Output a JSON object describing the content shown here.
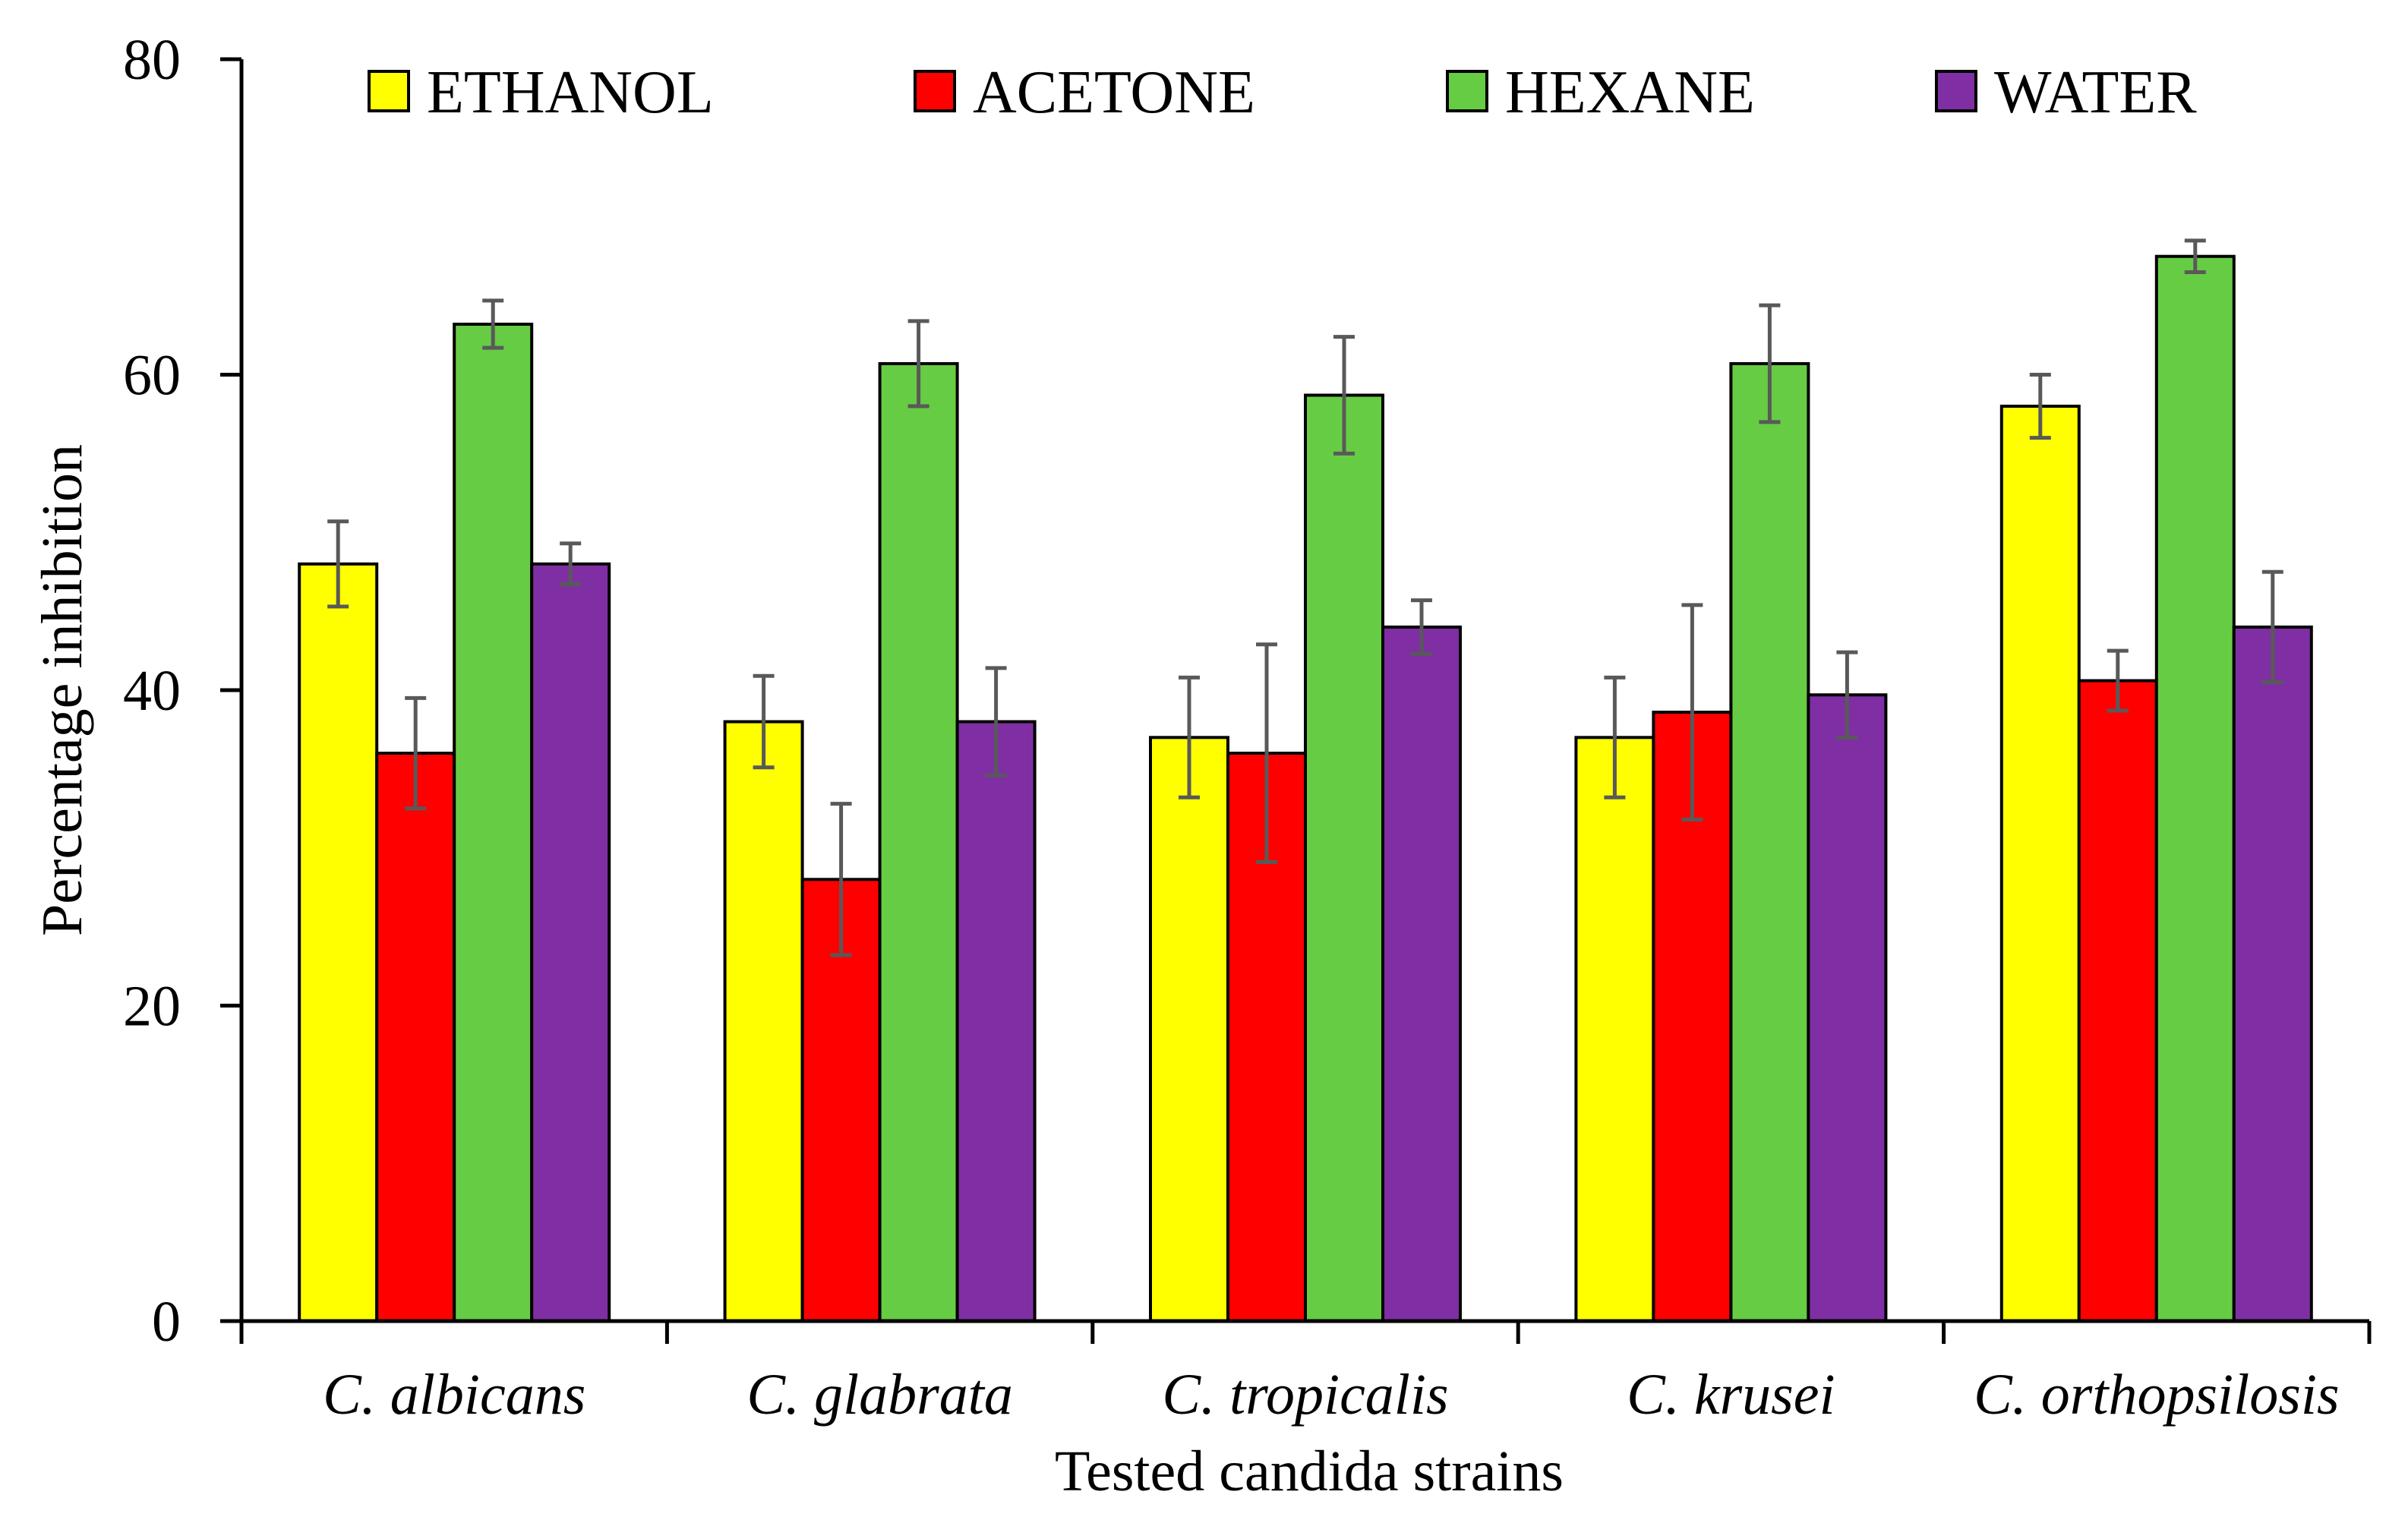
{
  "chart_data": {
    "type": "bar",
    "title": "",
    "xlabel": "Tested candida strains",
    "ylabel": "Percentage  inhibition",
    "ylim": [
      0,
      80
    ],
    "yticks": [
      0,
      20,
      40,
      60,
      80
    ],
    "grid": false,
    "legend_position": "top",
    "categories": [
      "C. albicans",
      "C. glabrata",
      "C. tropicalis",
      "C. krusei",
      "C. orthopsilosis"
    ],
    "series": [
      {
        "name": "ETHANOL",
        "color": "#FFFF00",
        "values": [
          48.0,
          38.0,
          37.0,
          37.0,
          58.0
        ],
        "errors": [
          2.7,
          2.9,
          3.8,
          3.8,
          2.0
        ]
      },
      {
        "name": "ACETONE",
        "color": "#FF0000",
        "values": [
          36.0,
          28.0,
          36.0,
          38.6,
          40.6
        ],
        "errors": [
          3.5,
          4.8,
          6.9,
          6.8,
          1.9
        ]
      },
      {
        "name": "HEXANE",
        "color": "#66CC44",
        "values": [
          63.2,
          60.7,
          58.7,
          60.7,
          67.5
        ],
        "errors": [
          1.5,
          2.7,
          3.7,
          3.7,
          1.0
        ]
      },
      {
        "name": "WATER",
        "color": "#7F2FA3",
        "values": [
          48.0,
          38.0,
          44.0,
          39.7,
          44.0
        ],
        "errors": [
          1.3,
          3.4,
          1.7,
          2.7,
          3.5
        ]
      }
    ],
    "error_bar_color": "#595959"
  }
}
